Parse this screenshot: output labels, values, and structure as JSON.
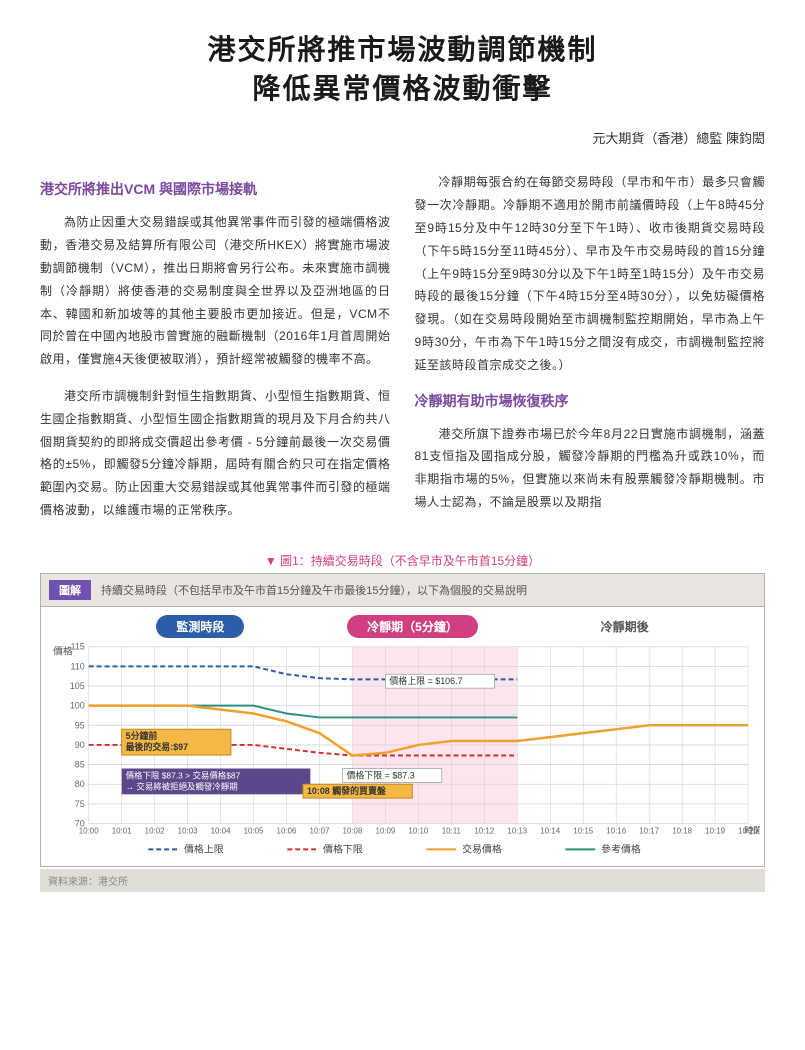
{
  "title_line1": "港交所將推市場波動調節機制",
  "title_line2": "降低異常價格波動衝擊",
  "author": "元大期貨（香港）總監 陳鈞閎",
  "heading1": "港交所將推出VCM 與國際市場接軌",
  "para1": "為防止因重大交易錯誤或其他異常事件而引發的極端價格波動，香港交易及結算所有限公司（港交所HKEX）將實施市場波動調節機制（VCM），推出日期將會另行公布。未來實施市調機制（冷靜期）將使香港的交易制度與全世界以及亞洲地區的日本、韓國和新加坡等的其他主要股市更加接近。但是，VCM不同於曾在中國內地股市曾實施的融斷機制（2016年1月首周開始啟用，僅實施4天後便被取消），預計經常被觸發的機率不高。",
  "para2": "港交所市調機制針對恒生指數期貨、小型恒生指數期貨、恒生國企指數期貨、小型恒生國企指數期貨的現月及下月合約共八個期貨契約的即將成交價超出參考價 - 5分鐘前最後一次交易價格的±5%，即觸發5分鐘冷靜期，屆時有關合約只可在指定價格範圍內交易。防止因重大交易錯誤或其他異常事件而引發的極端價格波動，以維護市場的正常秩序。",
  "para3": "冷靜期每張合約在每節交易時段（早市和午市）最多只會觸發一次冷靜期。冷靜期不適用於開市前議價時段（上午8時45分至9時15分及中午12時30分至下午1時）、收市後期貨交易時段（下午5時15分至11時45分）、早市及午市交易時段的首15分鐘（上午9時15分至9時30分以及下午1時至1時15分）及午市交易時段的最後15分鐘（下午4時15分至4時30分），以免妨礙價格發現。（如在交易時段開始至市調機制監控期開始，早市為上午9時30分，午市為下午1時15分之間沒有成交，市調機制監控將延至該時段首宗成交之後。）",
  "heading2": "冷靜期有助市場恢復秩序",
  "para4": "港交所旗下證券市場已於今年8月22日實施市調機制，涵蓋81支恒指及國指成分股，觸發冷靜期的門檻為升或跌10%，而非期指市場的5%，但實施以來尚未有股票觸發冷靜期機制。市場人士認為，不論是股票以及期指",
  "chart": {
    "caption_prefix": "▼",
    "caption": "圖1：持續交易時段（不含早市及午市首15分鐘）",
    "header_badge": "圖解",
    "header_text": "持續交易時段（不包括早市及午市首15分鐘及午市最後15分鐘），以下為個股的交易說明",
    "phases": [
      {
        "label": "監測時段",
        "color": "#2b5da8"
      },
      {
        "label": "冷靜期（5分鐘）",
        "color": "#d04080"
      },
      {
        "label": "冷靜期後",
        "color": "#888888"
      }
    ],
    "yaxis_label": "價格",
    "xaxis_label": "時間",
    "ylim": [
      70,
      115
    ],
    "ytick_step": 5,
    "yticks": [
      70,
      75,
      80,
      85,
      90,
      95,
      100,
      105,
      110,
      115
    ],
    "xlim": [
      0,
      20
    ],
    "xtick_labels": [
      "10:00",
      "10:01",
      "10:02",
      "10:03",
      "10:04",
      "10:05",
      "10:06",
      "10:07",
      "10:08",
      "10:09",
      "10:10",
      "10:11",
      "10:12",
      "10:13",
      "10:14",
      "10:15",
      "10:16",
      "10:17",
      "10:18",
      "10:19",
      "10:20"
    ],
    "phase_boundaries": {
      "monitoring_end": 8,
      "cool_end": 13
    },
    "series": {
      "upper_limit": {
        "label": "價格上限",
        "color": "#2b5da8",
        "dash": "5,3",
        "width": 2,
        "points": [
          [
            0,
            110
          ],
          [
            1,
            110
          ],
          [
            2,
            110
          ],
          [
            3,
            110
          ],
          [
            4,
            110
          ],
          [
            5,
            110
          ],
          [
            6,
            108
          ],
          [
            7,
            107
          ],
          [
            8,
            106.7
          ],
          [
            9,
            106.7
          ],
          [
            10,
            106.7
          ],
          [
            11,
            106.7
          ],
          [
            12,
            106.7
          ],
          [
            13,
            106.7
          ]
        ]
      },
      "lower_limit": {
        "label": "價格下限",
        "color": "#d03030",
        "dash": "5,3",
        "width": 2,
        "points": [
          [
            0,
            90
          ],
          [
            1,
            90
          ],
          [
            2,
            90
          ],
          [
            3,
            90
          ],
          [
            4,
            90
          ],
          [
            5,
            90
          ],
          [
            6,
            89
          ],
          [
            7,
            88
          ],
          [
            8,
            87.3
          ],
          [
            9,
            87.3
          ],
          [
            10,
            87.3
          ],
          [
            11,
            87.3
          ],
          [
            12,
            87.3
          ],
          [
            13,
            87.3
          ]
        ]
      },
      "trade_price": {
        "label": "交易價格",
        "color": "#f0a030",
        "dash": "none",
        "width": 2.5,
        "points": [
          [
            0,
            100
          ],
          [
            1,
            100
          ],
          [
            2,
            100
          ],
          [
            3,
            100
          ],
          [
            4,
            99
          ],
          [
            5,
            98
          ],
          [
            6,
            96
          ],
          [
            7,
            93
          ],
          [
            8,
            87.3
          ],
          [
            9,
            88
          ],
          [
            10,
            90
          ],
          [
            11,
            91
          ],
          [
            12,
            91
          ],
          [
            13,
            91
          ],
          [
            14,
            92
          ],
          [
            15,
            93
          ],
          [
            16,
            94
          ],
          [
            17,
            95
          ],
          [
            18,
            95
          ],
          [
            19,
            95
          ],
          [
            20,
            95
          ]
        ]
      },
      "reference": {
        "label": "參考價格",
        "color": "#2a9080",
        "dash": "none",
        "width": 2,
        "points": [
          [
            0,
            100
          ],
          [
            1,
            100
          ],
          [
            2,
            100
          ],
          [
            3,
            100
          ],
          [
            4,
            100
          ],
          [
            5,
            100
          ],
          [
            6,
            98
          ],
          [
            7,
            97
          ],
          [
            8,
            97
          ],
          [
            9,
            97
          ],
          [
            10,
            97
          ],
          [
            11,
            97
          ],
          [
            12,
            97
          ],
          [
            13,
            97
          ]
        ]
      }
    },
    "legend": [
      {
        "key": "upper_limit",
        "text": "價格上限"
      },
      {
        "key": "lower_limit",
        "text": "價格下限"
      },
      {
        "key": "trade_price",
        "text": "交易價格"
      },
      {
        "key": "reference",
        "text": "參考價格"
      }
    ],
    "annotations": {
      "upper_label": "價格上限 = $106.7",
      "lower_label": "價格下限 = $87.3",
      "last_trade_box_line1": "5分鐘前",
      "last_trade_box_line2": "最後的交易:$97",
      "reject_box_line1": "價格下限 $87.3 > 交易價格$87",
      "reject_box_line2": "→ 交易將被拒絕及觸發冷靜期",
      "trigger_box": "10:08 觸發的買賣盤",
      "cool_region_color": "#fde5ef",
      "monitoring_region_color": "#f5f9fc",
      "grid_color": "#d8d4ce"
    },
    "source": "資料來源：港交所"
  },
  "colors": {
    "heading": "#7b4a9e",
    "text": "#333333",
    "caption": "#d04080",
    "callout_bg": "#f5b844",
    "callout_border": "#c08820",
    "reject_bg": "#5b478a",
    "reject_text": "#ffffff"
  }
}
